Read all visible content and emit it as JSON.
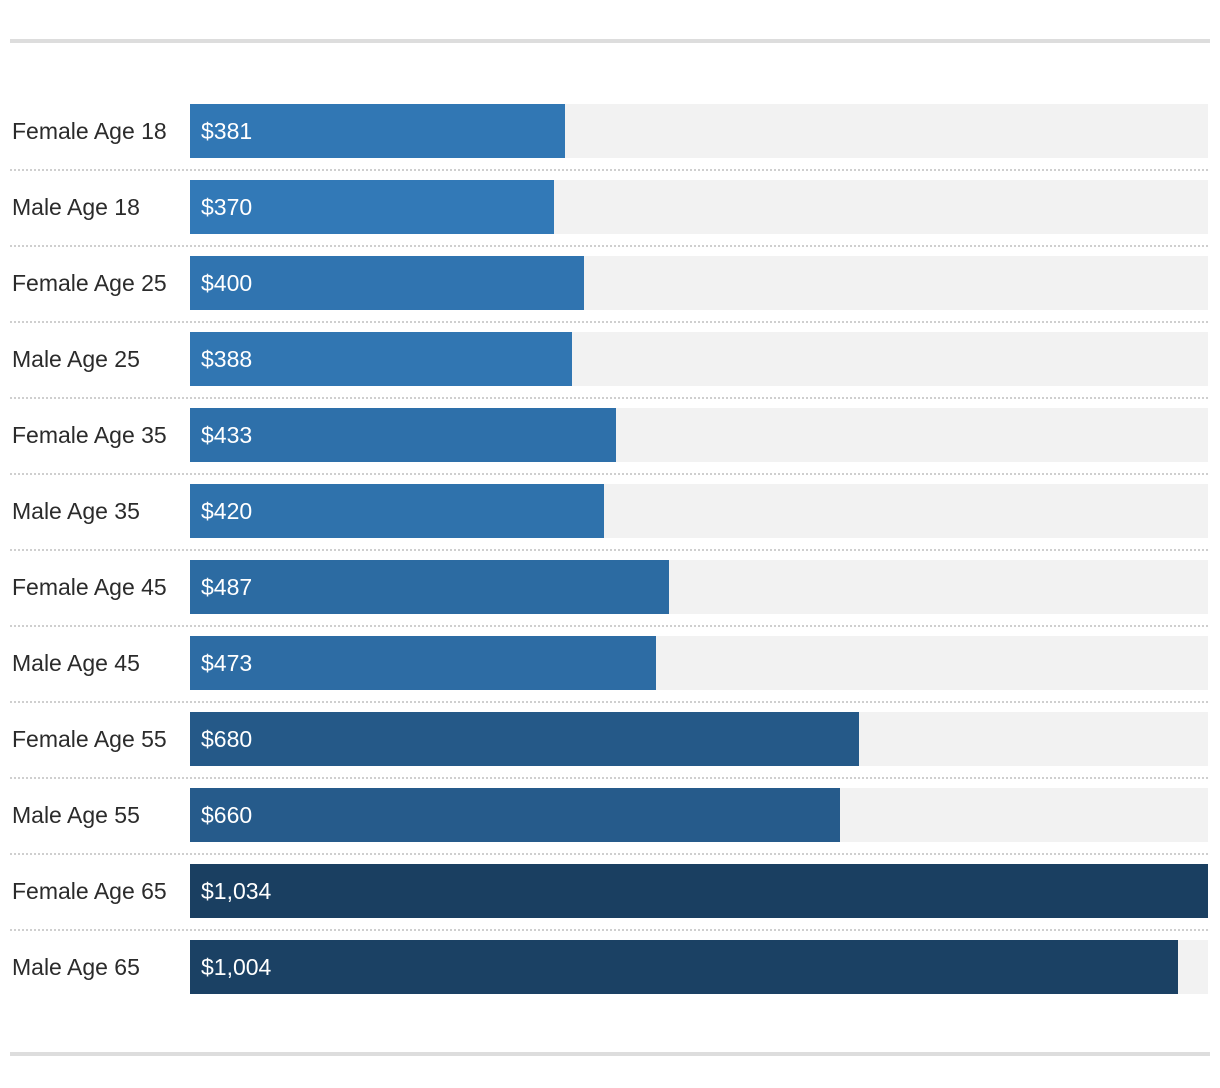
{
  "chart_data": {
    "type": "bar",
    "orientation": "horizontal",
    "categories": [
      "Female Age 18",
      "Male Age 18",
      "Female Age 25",
      "Male Age 25",
      "Female Age 35",
      "Male Age 35",
      "Female Age 45",
      "Male Age 45",
      "Female Age 55",
      "Male Age 55",
      "Female Age 65",
      "Male Age 65"
    ],
    "values": [
      381,
      370,
      400,
      388,
      433,
      420,
      487,
      473,
      680,
      660,
      1034,
      1004
    ],
    "value_labels": [
      "$381",
      "$370",
      "$400",
      "$388",
      "$433",
      "$420",
      "$487",
      "$473",
      "$680",
      "$660",
      "$1,034",
      "$1,004"
    ],
    "xlim": [
      0,
      1034
    ],
    "grid": false,
    "legend": "none",
    "colors": {
      "bar_light": "#3279b7",
      "bar_dark": "#1a3f61",
      "track": "#f2f2f2",
      "label_text": "#2b2b2b",
      "value_text": "#ffffff",
      "rule": "#dddddd",
      "divider": "#cfcfcf"
    }
  }
}
